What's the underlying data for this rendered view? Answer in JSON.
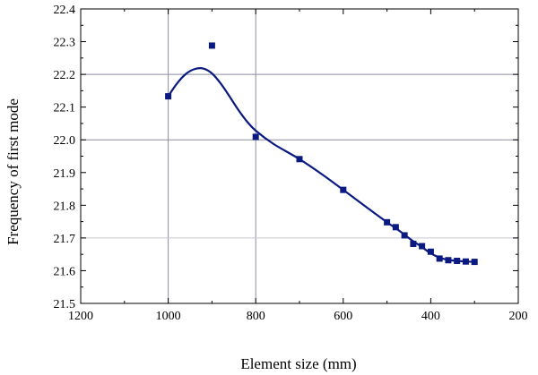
{
  "chart_data": {
    "type": "scatter",
    "title": "",
    "xlabel": "Element size (mm)",
    "ylabel": "Frequency of first mode",
    "xlim": [
      1200,
      200
    ],
    "ylim": [
      21.5,
      22.4
    ],
    "x_reversed": true,
    "xticks": [
      1200,
      1000,
      800,
      600,
      400,
      200
    ],
    "xtick_labels": [
      "1200",
      "1000",
      "800",
      "600",
      "400",
      "200"
    ],
    "yticks": [
      21.5,
      21.6,
      21.7,
      21.8,
      21.9,
      22.0,
      22.1,
      22.2,
      22.3,
      22.4
    ],
    "ytick_labels": [
      "21.5",
      "21.6",
      "21.7",
      "21.8",
      "21.9",
      "22.0",
      "22.1",
      "22.2",
      "22.3",
      "22.4"
    ],
    "grid": {
      "vertical_at": [
        1000,
        800
      ],
      "horizontal_at": [
        22.2,
        22.0
      ],
      "faint_horizontal_at": [
        21.7
      ]
    },
    "series": [
      {
        "kind": "markers",
        "marker": "square",
        "x": [
          1000,
          900,
          800,
          700,
          600,
          500,
          480,
          460,
          440,
          420,
          400,
          380,
          360,
          340,
          320,
          300
        ],
        "y": [
          22.133,
          22.288,
          22.009,
          21.941,
          21.847,
          21.748,
          21.733,
          21.708,
          21.682,
          21.675,
          21.658,
          21.637,
          21.632,
          21.63,
          21.628,
          21.627
        ]
      },
      {
        "kind": "fit-curve",
        "x": [
          1000,
          980,
          960,
          940,
          920,
          900,
          880,
          860,
          840,
          820,
          800,
          760,
          700,
          650,
          600,
          550,
          500,
          480,
          460,
          440,
          420,
          400,
          380,
          360,
          340,
          320,
          300
        ],
        "y": [
          22.133,
          22.172,
          22.201,
          22.216,
          22.218,
          22.203,
          22.172,
          22.133,
          22.092,
          22.056,
          22.028,
          21.988,
          21.941,
          21.896,
          21.847,
          21.797,
          21.748,
          21.73,
          21.71,
          21.69,
          21.672,
          21.653,
          21.64,
          21.633,
          21.63,
          21.628,
          21.627
        ]
      }
    ],
    "colors": {
      "series": "#0a1a80",
      "axis": "#000000",
      "grid": "#8c8ca0",
      "faint_grid": "#c8c8d2"
    }
  }
}
